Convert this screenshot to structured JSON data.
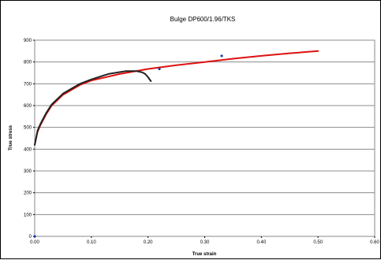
{
  "chart_data": {
    "type": "line",
    "title": "Bulge DP600/1.96/TKS",
    "xlabel": "True strain",
    "ylabel": "True stress",
    "xlim": [
      0,
      0.6
    ],
    "ylim": [
      0,
      900
    ],
    "xticks": [
      "0.00",
      "0.10",
      "0.20",
      "0.30",
      "0.40",
      "0.50",
      "0.60"
    ],
    "yticks": [
      "0",
      "100",
      "200",
      "300",
      "400",
      "500",
      "600",
      "700",
      "800",
      "900"
    ],
    "grid": "horizontal",
    "legend": "none",
    "series": [
      {
        "kind": "line",
        "color": "#dd1111",
        "x": [
          0.0,
          0.005,
          0.01,
          0.02,
          0.03,
          0.05,
          0.08,
          0.1,
          0.15,
          0.2,
          0.25,
          0.3,
          0.35,
          0.4,
          0.45,
          0.5
        ],
        "y": [
          420,
          480,
          510,
          560,
          600,
          650,
          695,
          715,
          745,
          768,
          785,
          800,
          815,
          828,
          840,
          850
        ]
      },
      {
        "kind": "line",
        "color": "#222222",
        "x": [
          0.0,
          0.005,
          0.01,
          0.02,
          0.03,
          0.05,
          0.08,
          0.1,
          0.13,
          0.16,
          0.18,
          0.19,
          0.195,
          0.2,
          0.205
        ],
        "y": [
          420,
          485,
          515,
          565,
          605,
          655,
          700,
          720,
          745,
          758,
          758,
          752,
          745,
          730,
          712
        ]
      },
      {
        "kind": "scatter",
        "color": "#1f3aa8",
        "x": [
          0.0,
          0.22,
          0.33
        ],
        "y": [
          0,
          768,
          828
        ]
      }
    ]
  }
}
